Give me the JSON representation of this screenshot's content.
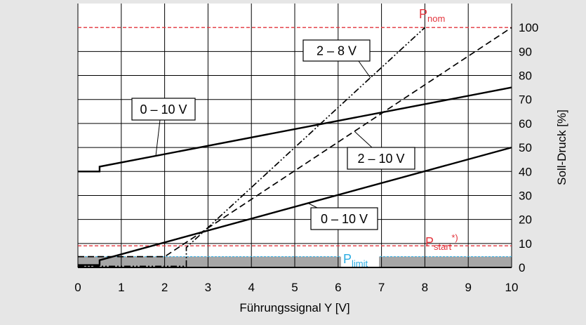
{
  "colors": {
    "background": "#e6e6e6",
    "plot_background": "#ffffff",
    "axis": "#000000",
    "limit_band": "#a6a6a6"
  },
  "chart_data": {
    "type": "line",
    "xlabel": "Führungssignal Y [V]",
    "ylabel": "Soll-Druck [%]",
    "xlim": [
      0,
      10
    ],
    "ylim": [
      0,
      110
    ],
    "x_ticks": [
      0,
      1,
      2,
      3,
      4,
      5,
      6,
      7,
      8,
      9,
      10
    ],
    "y_ticks": [
      0,
      10,
      20,
      30,
      40,
      50,
      60,
      70,
      80,
      90,
      100
    ],
    "y_axis_side": "right",
    "grid": true,
    "series": [
      {
        "name": "0 – 10 V",
        "style": "solid",
        "points": [
          [
            0,
            40
          ],
          [
            0.5,
            40
          ],
          [
            0.5,
            42
          ],
          [
            10,
            75
          ]
        ]
      },
      {
        "name": "0 – 10 V",
        "style": "solid",
        "points": [
          [
            0,
            1
          ],
          [
            0.5,
            1
          ],
          [
            0.5,
            3
          ],
          [
            10,
            50
          ]
        ]
      },
      {
        "name": "2 – 10 V",
        "style": "dashed",
        "points": [
          [
            0,
            4.5
          ],
          [
            2,
            4.5
          ],
          [
            10,
            100
          ]
        ]
      },
      {
        "name": "2 – 8 V",
        "style": "dash-dot-dot",
        "points": [
          [
            0,
            0.5
          ],
          [
            2.5,
            0.5
          ],
          [
            2.5,
            8.3
          ],
          [
            8,
            100
          ]
        ]
      }
    ],
    "reference_lines": [
      {
        "label_main": "P",
        "label_sub": "nom",
        "value": 100,
        "color": "#e3343c"
      },
      {
        "label_main": "P",
        "label_sub": "start",
        "label_sup": "*)",
        "value": 9,
        "color": "#e3343c"
      },
      {
        "label_main": "P",
        "label_sub": "limit",
        "value": 4.5,
        "color": "#2aace2",
        "shaded_below": true
      }
    ]
  }
}
